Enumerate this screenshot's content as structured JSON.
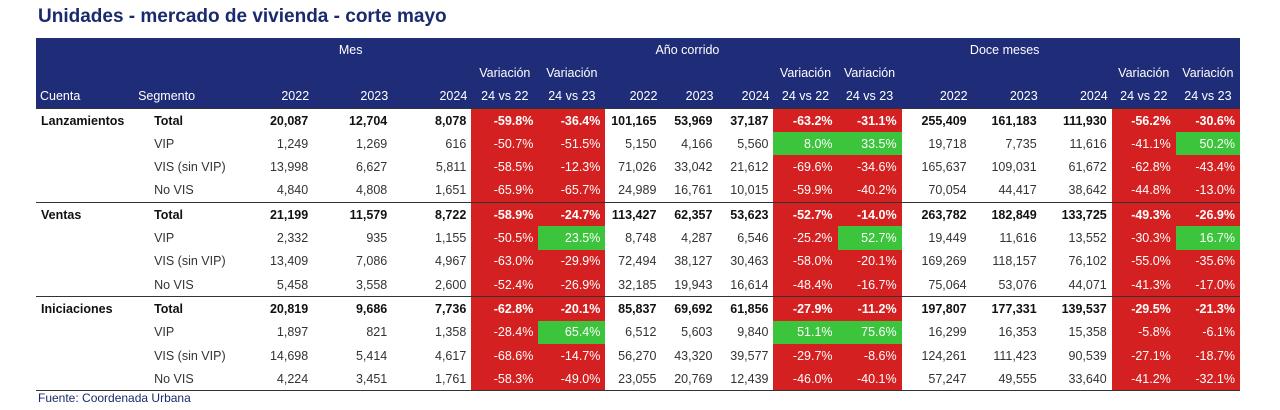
{
  "title": "Unidades - mercado de vivienda - corte mayo",
  "source": "Fuente: Coordenada Urbana",
  "headers": {
    "group_mes": "Mes",
    "group_ano": "Año corrido",
    "group_doce": "Doce meses",
    "variacion": "Variación",
    "cuenta": "Cuenta",
    "segmento": "Segmento",
    "y2022": "2022",
    "y2023": "2023",
    "y2024": "2024",
    "v24vs22": "24 vs 22",
    "v24vs23": "24 vs 23"
  },
  "colors": {
    "header_bg": "#1f2c78",
    "negative": "#d42020",
    "positive": "#3cc43c"
  },
  "rows": [
    {
      "cuenta": "Lanzamientos",
      "segmento": "Total",
      "total": true,
      "mes": [
        "20,087",
        "12,704",
        "8,078",
        "-59.8%",
        "-36.4%"
      ],
      "ano": [
        "101,165",
        "53,969",
        "37,187",
        "-63.2%",
        "-31.1%"
      ],
      "doce": [
        "255,409",
        "161,183",
        "111,930",
        "-56.2%",
        "-30.6%"
      ]
    },
    {
      "cuenta": "",
      "segmento": "VIP",
      "total": false,
      "mes": [
        "1,249",
        "1,269",
        "616",
        "-50.7%",
        "-51.5%"
      ],
      "ano": [
        "5,150",
        "4,166",
        "5,560",
        "8.0%",
        "33.5%"
      ],
      "doce": [
        "19,718",
        "7,735",
        "11,616",
        "-41.1%",
        "50.2%"
      ]
    },
    {
      "cuenta": "",
      "segmento": "VIS (sin VIP)",
      "total": false,
      "mes": [
        "13,998",
        "6,627",
        "5,811",
        "-58.5%",
        "-12.3%"
      ],
      "ano": [
        "71,026",
        "33,042",
        "21,612",
        "-69.6%",
        "-34.6%"
      ],
      "doce": [
        "165,637",
        "109,031",
        "61,672",
        "-62.8%",
        "-43.4%"
      ]
    },
    {
      "cuenta": "",
      "segmento": "No VIS",
      "total": false,
      "mes": [
        "4,840",
        "4,808",
        "1,651",
        "-65.9%",
        "-65.7%"
      ],
      "ano": [
        "24,989",
        "16,761",
        "10,015",
        "-59.9%",
        "-40.2%"
      ],
      "doce": [
        "70,054",
        "44,417",
        "38,642",
        "-44.8%",
        "-13.0%"
      ]
    },
    {
      "cuenta": "Ventas",
      "segmento": "Total",
      "total": true,
      "mes": [
        "21,199",
        "11,579",
        "8,722",
        "-58.9%",
        "-24.7%"
      ],
      "ano": [
        "113,427",
        "62,357",
        "53,623",
        "-52.7%",
        "-14.0%"
      ],
      "doce": [
        "263,782",
        "182,849",
        "133,725",
        "-49.3%",
        "-26.9%"
      ]
    },
    {
      "cuenta": "",
      "segmento": "VIP",
      "total": false,
      "mes": [
        "2,332",
        "935",
        "1,155",
        "-50.5%",
        "23.5%"
      ],
      "ano": [
        "8,748",
        "4,287",
        "6,546",
        "-25.2%",
        "52.7%"
      ],
      "doce": [
        "19,449",
        "11,616",
        "13,552",
        "-30.3%",
        "16.7%"
      ]
    },
    {
      "cuenta": "",
      "segmento": "VIS (sin VIP)",
      "total": false,
      "mes": [
        "13,409",
        "7,086",
        "4,967",
        "-63.0%",
        "-29.9%"
      ],
      "ano": [
        "72,494",
        "38,127",
        "30,463",
        "-58.0%",
        "-20.1%"
      ],
      "doce": [
        "169,269",
        "118,157",
        "76,102",
        "-55.0%",
        "-35.6%"
      ]
    },
    {
      "cuenta": "",
      "segmento": "No VIS",
      "total": false,
      "mes": [
        "5,458",
        "3,558",
        "2,600",
        "-52.4%",
        "-26.9%"
      ],
      "ano": [
        "32,185",
        "19,943",
        "16,614",
        "-48.4%",
        "-16.7%"
      ],
      "doce": [
        "75,064",
        "53,076",
        "44,071",
        "-41.3%",
        "-17.0%"
      ]
    },
    {
      "cuenta": "Iniciaciones",
      "segmento": "Total",
      "total": true,
      "mes": [
        "20,819",
        "9,686",
        "7,736",
        "-62.8%",
        "-20.1%"
      ],
      "ano": [
        "85,837",
        "69,692",
        "61,856",
        "-27.9%",
        "-11.2%"
      ],
      "doce": [
        "197,807",
        "177,331",
        "139,537",
        "-29.5%",
        "-21.3%"
      ]
    },
    {
      "cuenta": "",
      "segmento": "VIP",
      "total": false,
      "mes": [
        "1,897",
        "821",
        "1,358",
        "-28.4%",
        "65.4%"
      ],
      "ano": [
        "6,512",
        "5,603",
        "9,840",
        "51.1%",
        "75.6%"
      ],
      "doce": [
        "16,299",
        "16,353",
        "15,358",
        "-5.8%",
        "-6.1%"
      ]
    },
    {
      "cuenta": "",
      "segmento": "VIS (sin VIP)",
      "total": false,
      "mes": [
        "14,698",
        "5,414",
        "4,617",
        "-68.6%",
        "-14.7%"
      ],
      "ano": [
        "56,270",
        "43,320",
        "39,577",
        "-29.7%",
        "-8.6%"
      ],
      "doce": [
        "124,261",
        "111,423",
        "90,539",
        "-27.1%",
        "-18.7%"
      ]
    },
    {
      "cuenta": "",
      "segmento": "No VIS",
      "total": false,
      "mes": [
        "4,224",
        "3,451",
        "1,761",
        "-58.3%",
        "-49.0%"
      ],
      "ano": [
        "23,055",
        "20,769",
        "12,439",
        "-46.0%",
        "-40.1%"
      ],
      "doce": [
        "57,247",
        "49,555",
        "33,640",
        "-41.2%",
        "-32.1%"
      ]
    }
  ]
}
